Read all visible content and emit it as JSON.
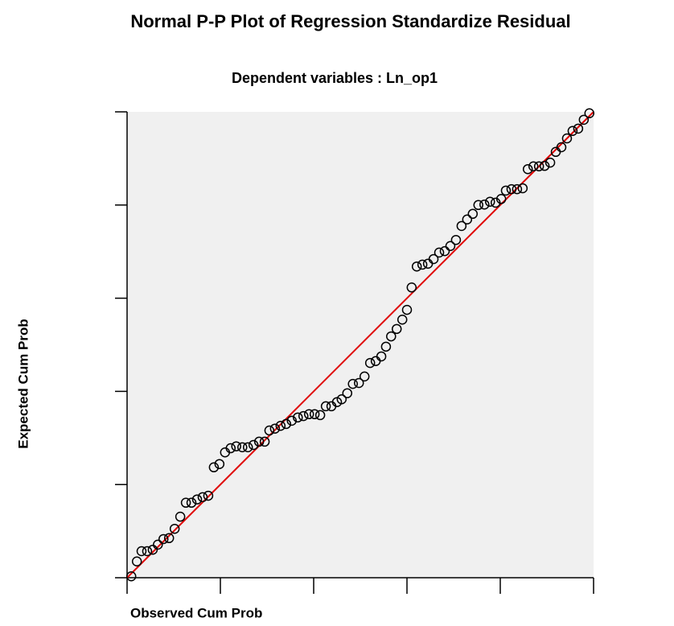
{
  "chart_data": {
    "type": "scatter",
    "title": "Normal P-P Plot of Regression Standardize Residual",
    "subtitle": "Dependent variables : Ln_op1",
    "x_label": "Observed Cum Prob",
    "y_label": "Expected Cum Prob",
    "xlim": [
      0,
      1
    ],
    "ylim": [
      0,
      1
    ],
    "xticks": [
      0,
      0.2,
      0.4,
      0.6,
      0.8,
      1
    ],
    "yticks": [
      0,
      0.2,
      0.4,
      0.6,
      0.8,
      1
    ],
    "marker_color": "#000000",
    "background": "#f0f0f0",
    "reference_line": {
      "x": [
        0,
        1
      ],
      "y": [
        0,
        1
      ],
      "color": "#e00000"
    },
    "x": [
      0.009,
      0.021,
      0.031,
      0.043,
      0.055,
      0.066,
      0.078,
      0.09,
      0.102,
      0.114,
      0.126,
      0.138,
      0.15,
      0.162,
      0.174,
      0.186,
      0.198,
      0.21,
      0.222,
      0.234,
      0.247,
      0.259,
      0.271,
      0.283,
      0.295,
      0.305,
      0.317,
      0.329,
      0.341,
      0.353,
      0.366,
      0.378,
      0.39,
      0.402,
      0.414,
      0.426,
      0.438,
      0.45,
      0.46,
      0.472,
      0.484,
      0.497,
      0.509,
      0.521,
      0.533,
      0.545,
      0.555,
      0.566,
      0.578,
      0.59,
      0.6,
      0.61,
      0.621,
      0.633,
      0.645,
      0.657,
      0.669,
      0.681,
      0.693,
      0.705,
      0.717,
      0.729,
      0.741,
      0.753,
      0.766,
      0.778,
      0.79,
      0.802,
      0.812,
      0.824,
      0.836,
      0.848,
      0.859,
      0.871,
      0.883,
      0.895,
      0.907,
      0.919,
      0.931,
      0.943,
      0.955,
      0.967,
      0.979,
      0.991
    ],
    "values": [
      0.003,
      0.035,
      0.057,
      0.057,
      0.06,
      0.071,
      0.083,
      0.085,
      0.105,
      0.131,
      0.161,
      0.161,
      0.168,
      0.173,
      0.176,
      0.237,
      0.244,
      0.269,
      0.278,
      0.282,
      0.28,
      0.28,
      0.285,
      0.292,
      0.292,
      0.316,
      0.32,
      0.326,
      0.33,
      0.337,
      0.344,
      0.347,
      0.351,
      0.351,
      0.349,
      0.368,
      0.368,
      0.377,
      0.383,
      0.396,
      0.416,
      0.418,
      0.432,
      0.461,
      0.465,
      0.475,
      0.496,
      0.518,
      0.534,
      0.554,
      0.575,
      0.623,
      0.668,
      0.672,
      0.674,
      0.684,
      0.698,
      0.701,
      0.712,
      0.725,
      0.755,
      0.769,
      0.781,
      0.8,
      0.801,
      0.807,
      0.805,
      0.813,
      0.831,
      0.834,
      0.834,
      0.836,
      0.877,
      0.883,
      0.883,
      0.884,
      0.891,
      0.914,
      0.924,
      0.943,
      0.959,
      0.964,
      0.983,
      0.997
    ]
  }
}
